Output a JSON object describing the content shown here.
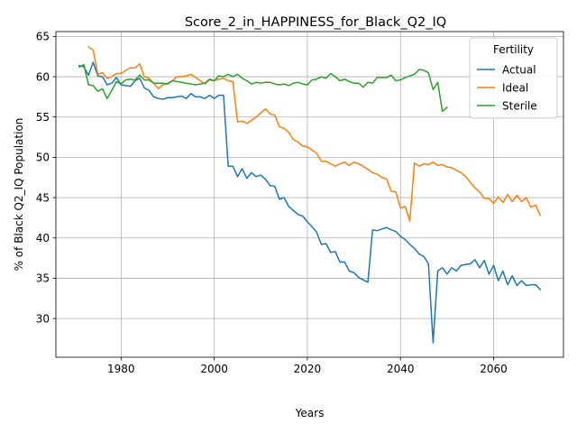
{
  "chart_data": {
    "type": "line",
    "title": "Score_2_in_HAPPINESS_for_Black_Q2_IQ",
    "xlabel": "Years",
    "ylabel": "% of Black Q2_IQ Population",
    "xlim": [
      1966,
      2075
    ],
    "ylim": [
      25.2,
      65.6
    ],
    "xticks": [
      1980,
      2000,
      2020,
      2040,
      2060
    ],
    "yticks": [
      30,
      35,
      40,
      45,
      50,
      55,
      60,
      65
    ],
    "grid": true,
    "legend": {
      "title": "Fertility",
      "placement": "top-right"
    },
    "series": [
      {
        "name": "Actual",
        "color": "#1f77b4",
        "x": [
          1971,
          1972,
          1973,
          1974,
          1975,
          1976,
          1977,
          1978,
          1979,
          1980,
          1981,
          1982,
          1983,
          1984,
          1985,
          1986,
          1987,
          1988,
          1989,
          1990,
          1991,
          1992,
          1993,
          1994,
          1995,
          1996,
          1997,
          1998,
          1999,
          2000,
          2001,
          2002,
          2003,
          2004,
          2005,
          2006,
          2007,
          2008,
          2009,
          2010,
          2011,
          2012,
          2013,
          2014,
          2015,
          2016,
          2017,
          2018,
          2019,
          2020,
          2021,
          2022,
          2023,
          2024,
          2025,
          2026,
          2027,
          2028,
          2029,
          2030,
          2031,
          2032,
          2033,
          2034,
          2035,
          2036,
          2037,
          2038,
          2039,
          2040,
          2041,
          2042,
          2043,
          2044,
          2045,
          2046,
          2047,
          2048,
          2049,
          2050,
          2051,
          2052,
          2053,
          2054,
          2055,
          2056,
          2057,
          2058,
          2059,
          2060,
          2061,
          2062,
          2063,
          2064,
          2065,
          2066,
          2067,
          2068,
          2069,
          2070
        ],
        "y": [
          61.4,
          61.2,
          60.2,
          61.8,
          60.1,
          60.0,
          59.0,
          59.2,
          59.9,
          59.0,
          58.9,
          58.8,
          59.5,
          59.8,
          58.6,
          58.3,
          57.5,
          57.3,
          57.2,
          57.4,
          57.4,
          57.5,
          57.6,
          57.3,
          57.9,
          57.5,
          57.5,
          57.3,
          57.7,
          57.3,
          57.7,
          57.7,
          48.9,
          48.9,
          47.6,
          48.6,
          47.4,
          48.1,
          47.6,
          47.8,
          47.3,
          46.5,
          46.4,
          44.8,
          45.0,
          43.9,
          43.4,
          42.9,
          42.7,
          42.0,
          41.4,
          40.7,
          39.2,
          39.3,
          38.2,
          38.3,
          37.0,
          37.0,
          35.9,
          35.7,
          35.1,
          34.8,
          34.5,
          41.0,
          40.9,
          41.1,
          41.3,
          41.0,
          40.8,
          40.2,
          39.8,
          39.2,
          38.7,
          38.0,
          37.7,
          36.8,
          27.0,
          35.9,
          36.3,
          35.5,
          36.3,
          35.9,
          36.6,
          36.7,
          36.8,
          37.3,
          36.3,
          37.2,
          35.5,
          36.6,
          34.7,
          35.9,
          34.2,
          35.3,
          34.1,
          34.7,
          34.1,
          34.2,
          34.2,
          33.6
        ]
      },
      {
        "name": "Ideal",
        "color": "#ff7f0e",
        "x": [
          1973,
          1974,
          1975,
          1976,
          1977,
          1978,
          1979,
          1980,
          1981,
          1982,
          1983,
          1984,
          1985,
          1986,
          1987,
          1988,
          1989,
          1990,
          1991,
          1992,
          1993,
          1994,
          1995,
          1996,
          1997,
          1998,
          1999,
          2000,
          2001,
          2002,
          2003,
          2004,
          2005,
          2006,
          2007,
          2008,
          2009,
          2010,
          2011,
          2012,
          2013,
          2014,
          2015,
          2016,
          2017,
          2018,
          2019,
          2020,
          2021,
          2022,
          2023,
          2024,
          2025,
          2026,
          2027,
          2028,
          2029,
          2030,
          2031,
          2032,
          2033,
          2034,
          2035,
          2036,
          2037,
          2038,
          2039,
          2040,
          2041,
          2042,
          2043,
          2044,
          2045,
          2046,
          2047,
          2048,
          2049,
          2050,
          2051,
          2052,
          2053,
          2054,
          2055,
          2056,
          2057,
          2058,
          2059,
          2060,
          2061,
          2062,
          2063,
          2064,
          2065,
          2066,
          2067,
          2068,
          2069,
          2070
        ],
        "y": [
          63.7,
          63.3,
          60.3,
          60.5,
          59.8,
          60.0,
          60.4,
          60.4,
          60.8,
          61.1,
          61.1,
          61.6,
          60.0,
          59.8,
          59.2,
          58.5,
          59.0,
          59.2,
          59.5,
          60.0,
          60.0,
          60.1,
          60.3,
          59.9,
          59.5,
          59.1,
          59.6,
          59.5,
          59.7,
          59.8,
          59.5,
          59.4,
          54.4,
          54.5,
          54.2,
          54.6,
          55.0,
          55.5,
          56.0,
          55.4,
          55.2,
          53.8,
          53.6,
          53.1,
          52.2,
          51.9,
          51.4,
          51.3,
          50.9,
          50.5,
          49.5,
          49.5,
          49.2,
          48.9,
          49.2,
          49.4,
          49.0,
          49.4,
          49.2,
          48.9,
          48.5,
          48.1,
          47.9,
          47.5,
          47.3,
          45.8,
          45.7,
          43.7,
          43.9,
          42.1,
          49.3,
          48.9,
          49.2,
          49.1,
          49.4,
          49.0,
          49.1,
          48.8,
          48.7,
          48.4,
          48.1,
          47.6,
          46.9,
          46.2,
          45.7,
          44.9,
          44.9,
          44.3,
          45.1,
          44.4,
          45.4,
          44.5,
          45.3,
          44.5,
          45.0,
          43.8,
          44.1,
          42.8
        ]
      },
      {
        "name": "Sterile",
        "color": "#2ca02c",
        "x": [
          1971,
          1972,
          1973,
          1974,
          1975,
          1976,
          1977,
          1978,
          1979,
          1980,
          1981,
          1982,
          1983,
          1984,
          1985,
          1986,
          1987,
          1988,
          1989,
          1990,
          1991,
          1992,
          1993,
          1994,
          1995,
          1996,
          1997,
          1998,
          1999,
          2000,
          2001,
          2002,
          2003,
          2004,
          2005,
          2006,
          2007,
          2008,
          2009,
          2010,
          2011,
          2012,
          2013,
          2014,
          2015,
          2016,
          2017,
          2018,
          2019,
          2020,
          2021,
          2022,
          2023,
          2024,
          2025,
          2026,
          2027,
          2028,
          2029,
          2030,
          2031,
          2032,
          2033,
          2034,
          2035,
          2036,
          2037,
          2038,
          2039,
          2040,
          2041,
          2042,
          2043,
          2044,
          2045,
          2046,
          2047,
          2048,
          2049,
          2050,
          2051
        ],
        "y": [
          61.2,
          61.5,
          59.0,
          58.9,
          58.2,
          58.5,
          57.3,
          58.3,
          59.4,
          59.1,
          59.6,
          59.7,
          59.6,
          60.2,
          59.6,
          59.6,
          59.2,
          59.2,
          59.2,
          59.1,
          59.5,
          59.4,
          59.3,
          59.2,
          59.1,
          59.0,
          59.1,
          59.2,
          59.7,
          59.5,
          60.1,
          60.0,
          60.3,
          60.0,
          60.3,
          59.8,
          59.5,
          59.1,
          59.3,
          59.2,
          59.3,
          59.3,
          59.1,
          59.0,
          59.1,
          58.9,
          59.2,
          59.3,
          59.1,
          59.0,
          59.6,
          59.7,
          60.0,
          59.8,
          60.4,
          60.0,
          59.5,
          59.7,
          59.4,
          59.2,
          59.2,
          58.7,
          59.3,
          59.2,
          59.9,
          59.9,
          59.9,
          60.2,
          59.5,
          59.6,
          59.9,
          60.1,
          60.3,
          60.9,
          60.8,
          60.5,
          58.4,
          59.3,
          55.7,
          56.2,
          null
        ]
      }
    ]
  }
}
